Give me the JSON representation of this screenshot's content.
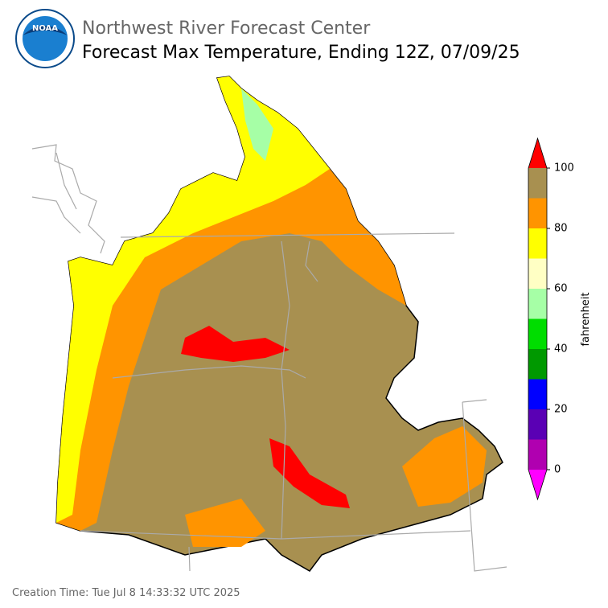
{
  "header": {
    "logo_text": "NOAA",
    "title": "Northwest River Forecast Center",
    "subtitle": "Forecast Max Temperature, Ending 12Z, 07/09/25"
  },
  "colorbar": {
    "label": "fahrenheit",
    "ticks": [
      0,
      20,
      40,
      60,
      80,
      100
    ],
    "bounds": [
      0,
      10,
      20,
      30,
      40,
      50,
      60,
      70,
      80,
      90,
      100
    ],
    "colors": [
      "#b000b0",
      "#5a00b4",
      "#0000ff",
      "#009900",
      "#00dd00",
      "#a6ffa6",
      "#ffffc4",
      "#ffff00",
      "#ff9400",
      "#a89050"
    ],
    "under_color": "#ff00ff",
    "over_color": "#ff0000"
  },
  "footer": {
    "creation_time": "Creation Time: Tue Jul 8 14:33:32 UTC 2025"
  }
}
